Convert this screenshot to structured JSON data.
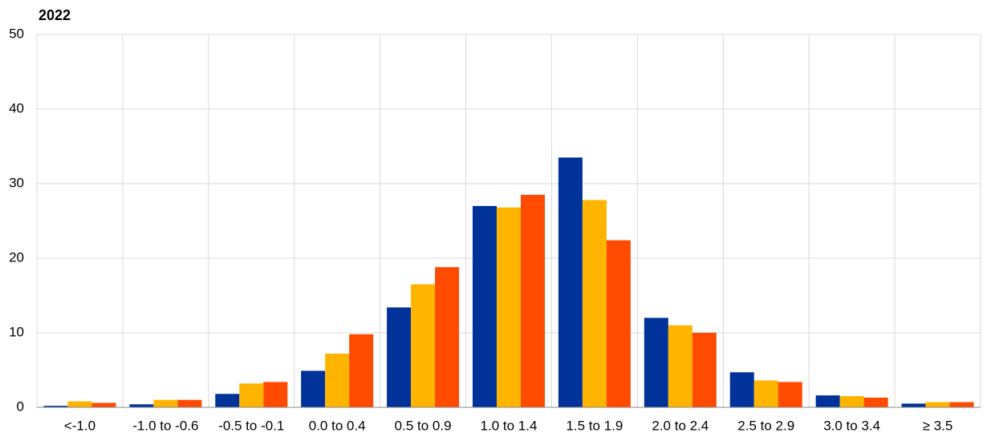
{
  "chart_data": {
    "type": "bar",
    "title": "2022",
    "categories": [
      "<-1.0",
      "-1.0 to -0.6",
      "-0.5 to -0.1",
      "0.0 to 0.4",
      "0.5 to 0.9",
      "1.0 to 1.4",
      "1.5 to 1.9",
      "2.0 to 2.4",
      "2.5 to 2.9",
      "3.0 to 3.4",
      "≥ 3.5"
    ],
    "series": [
      {
        "color": "#003299",
        "values": [
          0.2,
          0.4,
          1.8,
          4.9,
          13.4,
          27.0,
          33.5,
          12.0,
          4.7,
          1.6,
          0.5
        ]
      },
      {
        "color": "#ffb400",
        "values": [
          0.8,
          1.0,
          3.2,
          7.2,
          16.5,
          26.8,
          27.8,
          11.0,
          3.6,
          1.5,
          0.7
        ]
      },
      {
        "color": "#ff4b00",
        "values": [
          0.6,
          1.0,
          3.4,
          9.8,
          18.8,
          28.5,
          22.4,
          10.0,
          3.4,
          1.3,
          0.7
        ]
      }
    ],
    "ylim": [
      0,
      50
    ],
    "yticks": [
      0,
      10,
      20,
      30,
      40,
      50
    ],
    "grid": true
  }
}
